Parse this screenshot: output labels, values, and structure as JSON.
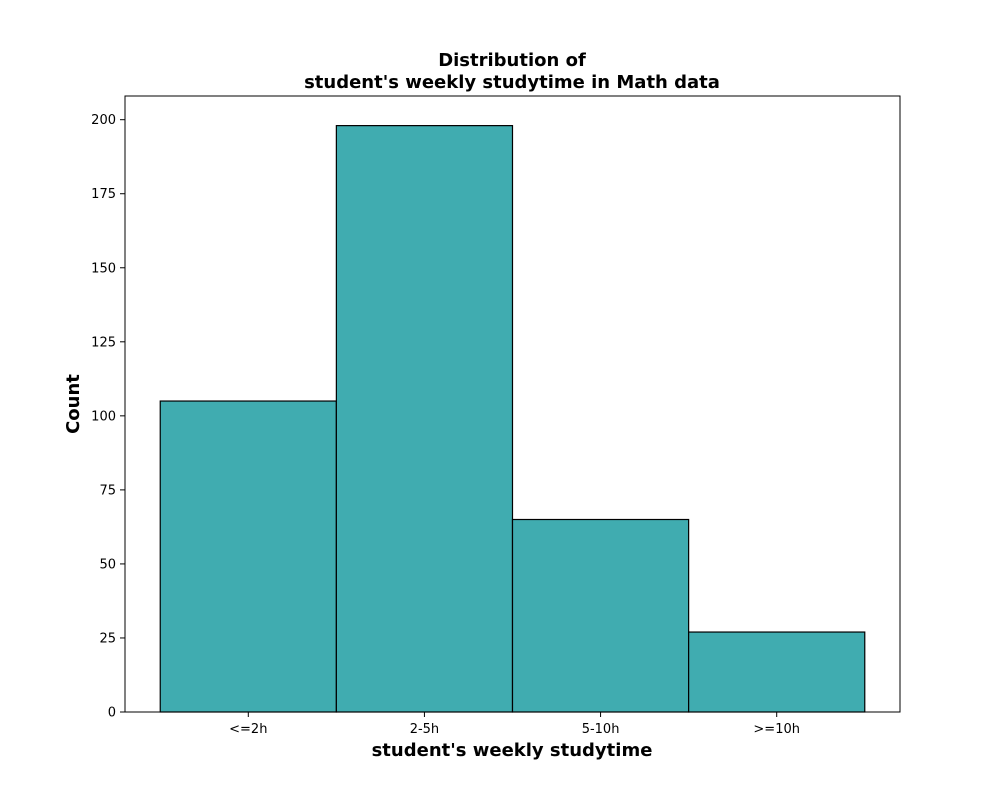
{
  "chart_data": {
    "type": "bar",
    "title": [
      "Distribution of",
      "student's weekly studytime in Math data"
    ],
    "xlabel": "student's weekly studytime",
    "ylabel": "Count",
    "categories": [
      "<=2h",
      "2-5h",
      "5-10h",
      ">=10h"
    ],
    "values": [
      105,
      198,
      65,
      27
    ],
    "ylim": [
      0,
      208
    ],
    "yticks": [
      0,
      25,
      50,
      75,
      100,
      125,
      150,
      175,
      200
    ],
    "grid": false,
    "legend": "none",
    "bar_color": "#40acb0",
    "bar_edge_color": "#000000"
  }
}
